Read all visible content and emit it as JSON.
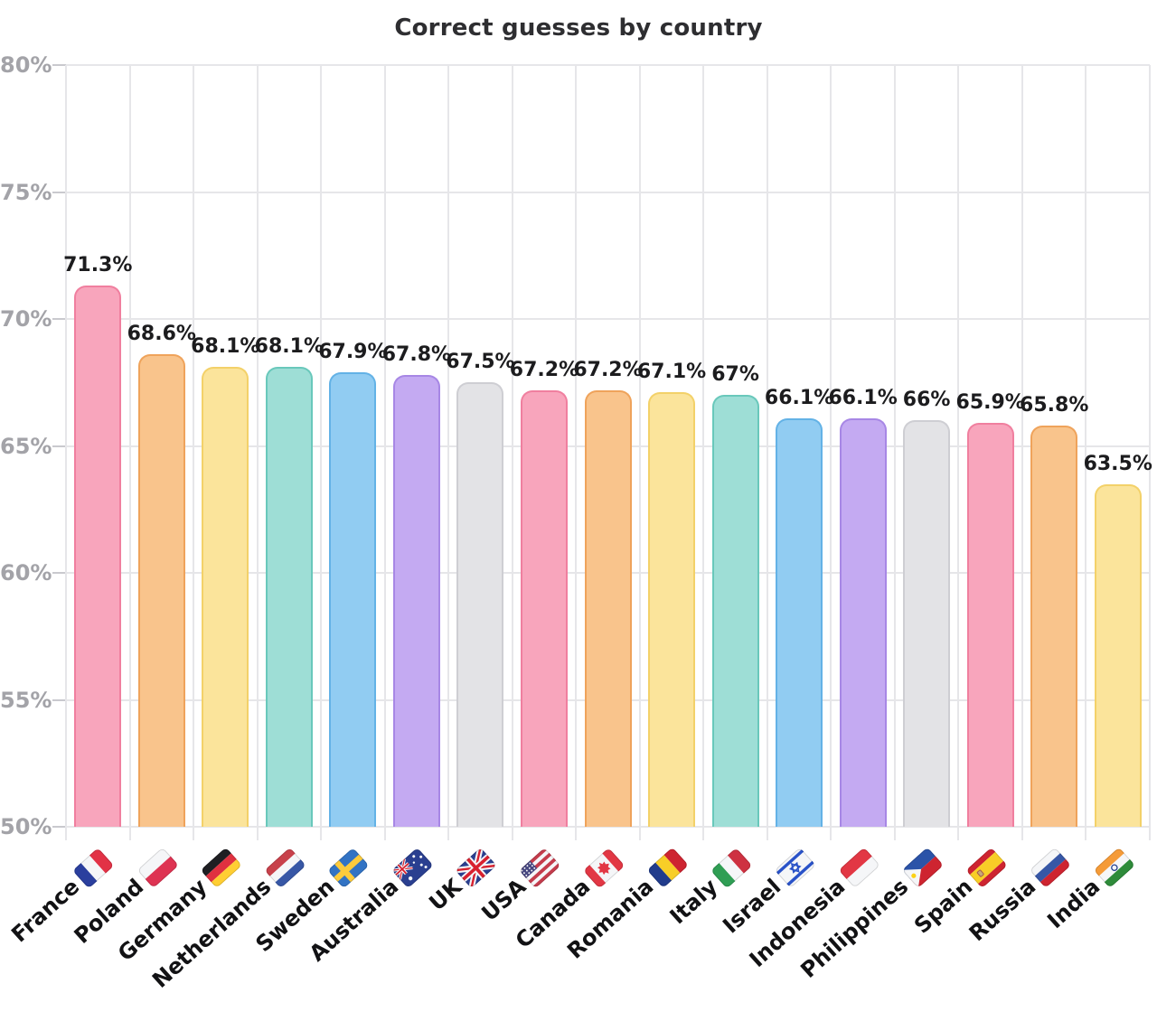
{
  "title": "Correct guesses by country",
  "chart_data": {
    "type": "bar",
    "title": "Correct guesses by country",
    "xlabel": "",
    "ylabel": "",
    "ylim": [
      50,
      80
    ],
    "ytick_step": 5,
    "ytick_labels": [
      "80%",
      "75%",
      "70%",
      "65%",
      "60%",
      "55%",
      "50%"
    ],
    "grid": true,
    "legend": false,
    "categories": [
      "France",
      "Poland",
      "Germany",
      "Netherlands",
      "Sweden",
      "Australia",
      "UK",
      "USA",
      "Canada",
      "Romania",
      "Italy",
      "Israel",
      "Indonesia",
      "Philippines",
      "Spain",
      "Russia",
      "India"
    ],
    "values": [
      71.3,
      68.6,
      68.1,
      68.1,
      67.9,
      67.8,
      67.5,
      67.2,
      67.2,
      67.1,
      67.0,
      66.1,
      66.1,
      66.0,
      65.9,
      65.8,
      63.5
    ],
    "value_labels": [
      "71.3%",
      "68.6%",
      "68.1%",
      "68.1%",
      "67.9%",
      "67.8%",
      "67.5%",
      "67.2%",
      "67.2%",
      "67.1%",
      "67%",
      "66.1%",
      "66.1%",
      "66%",
      "65.9%",
      "65.8%",
      "63.5%"
    ],
    "palette": [
      {
        "name": "pink",
        "fill": "#F8A5BC",
        "stroke": "#F07F9F"
      },
      {
        "name": "orange",
        "fill": "#F9C48C",
        "stroke": "#EFA35B"
      },
      {
        "name": "yellow",
        "fill": "#FBE49B",
        "stroke": "#F3D169"
      },
      {
        "name": "teal",
        "fill": "#9EDED6",
        "stroke": "#69C8BB"
      },
      {
        "name": "blue",
        "fill": "#91CCF2",
        "stroke": "#63B2E6"
      },
      {
        "name": "purple",
        "fill": "#C4AAF2",
        "stroke": "#A787E5"
      },
      {
        "name": "gray",
        "fill": "#E3E3E6",
        "stroke": "#CECED3"
      }
    ],
    "colors_by_bar": [
      "pink",
      "orange",
      "yellow",
      "teal",
      "blue",
      "purple",
      "gray",
      "pink",
      "orange",
      "yellow",
      "teal",
      "blue",
      "purple",
      "gray",
      "pink",
      "orange",
      "yellow"
    ]
  },
  "style": {
    "background": "#FFFFFF",
    "title_color": "#2E2E31",
    "grid_color": "#E6E6E9",
    "tick_color": "#C9C9CE",
    "axis_label_color": "#A3A3A8",
    "value_label_color": "#1C1C1E",
    "category_label_color": "#121214"
  },
  "flags": {
    "France": {
      "icon": "france-flag-icon",
      "type": "v",
      "colors": [
        "#2B3F9E",
        "#F5F6F8",
        "#E23246"
      ]
    },
    "Poland": {
      "icon": "poland-flag-icon",
      "type": "h",
      "colors": [
        "#F5F6F8",
        "#DE3352"
      ]
    },
    "Germany": {
      "icon": "germany-flag-icon",
      "type": "h",
      "colors": [
        "#1F1F23",
        "#E03140",
        "#FFCE33"
      ]
    },
    "Netherlands": {
      "icon": "netherlands-flag-icon",
      "type": "h",
      "colors": [
        "#C8414B",
        "#F5F6F8",
        "#3757A6"
      ]
    },
    "Sweden": {
      "icon": "sweden-flag-icon",
      "type": "nordic-cross",
      "colors": [
        "#3273C4",
        "#FDCB3C"
      ]
    },
    "Australia": {
      "icon": "australia-flag-icon",
      "type": "australia",
      "colors": [
        "#2A3F90",
        "#F5F6F8",
        "#D8212F"
      ]
    },
    "UK": {
      "icon": "uk-flag-icon",
      "type": "uk",
      "colors": [
        "#2A3F90",
        "#F5F6F8",
        "#D8212F"
      ]
    },
    "USA": {
      "icon": "usa-flag-icon",
      "type": "usa",
      "colors": [
        "#C43C4C",
        "#F5F6F8",
        "#46467F"
      ]
    },
    "Canada": {
      "icon": "canada-flag-icon",
      "type": "canada",
      "colors": [
        "#E23744",
        "#F5F6F8"
      ]
    },
    "Romania": {
      "icon": "romania-flag-icon",
      "type": "v",
      "colors": [
        "#213C8C",
        "#F8CE27",
        "#CE2430"
      ]
    },
    "Italy": {
      "icon": "italy-flag-icon",
      "type": "v",
      "colors": [
        "#2F9E54",
        "#F5F6F8",
        "#CE3141"
      ]
    },
    "Israel": {
      "icon": "israel-flag-icon",
      "type": "israel",
      "colors": [
        "#F5F6F8",
        "#2952C8"
      ]
    },
    "Indonesia": {
      "icon": "indonesia-flag-icon",
      "type": "h",
      "colors": [
        "#E23744",
        "#F5F6F8"
      ]
    },
    "Philippines": {
      "icon": "philippines-flag-icon",
      "type": "philippines",
      "colors": [
        "#2B53A8",
        "#CE2430",
        "#F5F6F8",
        "#FCD116"
      ]
    },
    "Spain": {
      "icon": "spain-flag-icon",
      "type": "spain",
      "colors": [
        "#CE2430",
        "#F8CE27"
      ],
      "weights": [
        1,
        2,
        1
      ]
    },
    "Russia": {
      "icon": "russia-flag-icon",
      "type": "h",
      "colors": [
        "#F5F6F8",
        "#3757A6",
        "#CE2430"
      ]
    },
    "India": {
      "icon": "india-flag-icon",
      "type": "india",
      "colors": [
        "#F59B38",
        "#F5F6F8",
        "#2E8B3A",
        "#24408E"
      ]
    }
  }
}
